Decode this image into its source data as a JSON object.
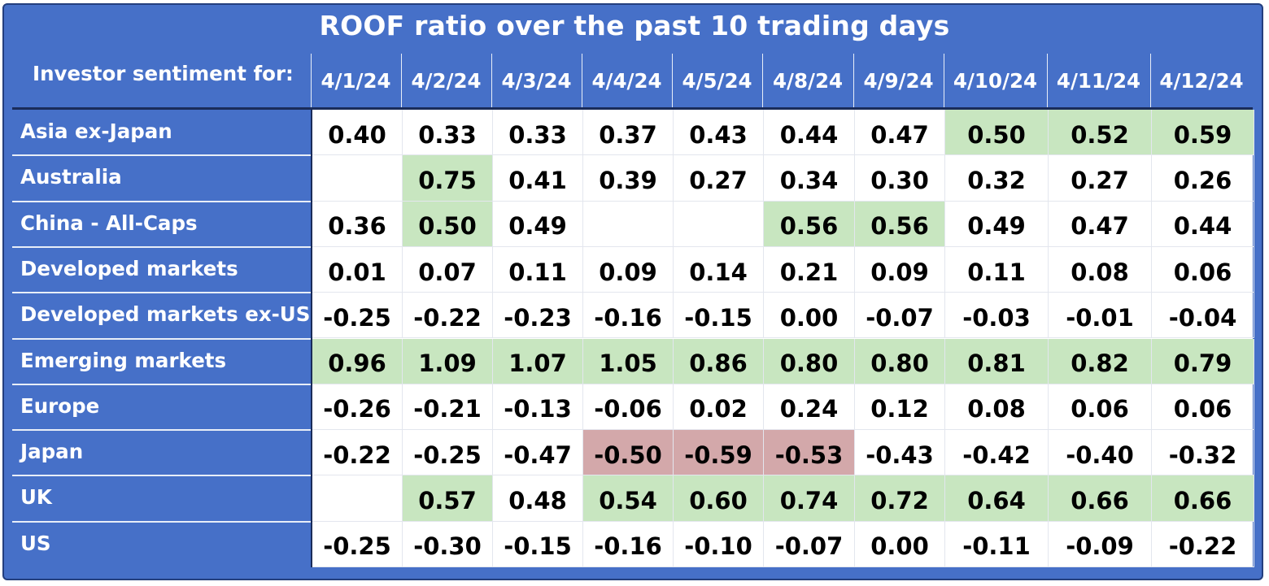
{
  "chart_data": {
    "type": "table",
    "title": "ROOF ratio over the past 10 trading days",
    "row_header": "Investor sentiment for:",
    "columns": [
      "4/1/24",
      "4/2/24",
      "4/3/24",
      "4/4/24",
      "4/5/24",
      "4/8/24",
      "4/9/24",
      "4/10/24",
      "4/11/24",
      "4/12/24"
    ],
    "rows": [
      {
        "label": "Asia ex-Japan",
        "values": [
          "0.40",
          "0.33",
          "0.33",
          "0.37",
          "0.43",
          "0.44",
          "0.47",
          "0.50",
          "0.52",
          "0.59"
        ],
        "highlight": [
          "",
          "",
          "",
          "",
          "",
          "",
          "",
          "pos",
          "pos",
          "pos"
        ]
      },
      {
        "label": "Australia",
        "values": [
          "",
          "0.75",
          "0.41",
          "0.39",
          "0.27",
          "0.34",
          "0.30",
          "0.32",
          "0.27",
          "0.26"
        ],
        "highlight": [
          "",
          "pos",
          "",
          "",
          "",
          "",
          "",
          "",
          "",
          ""
        ]
      },
      {
        "label": "China - All-Caps",
        "values": [
          "0.36",
          "0.50",
          "0.49",
          "",
          "",
          "0.56",
          "0.56",
          "0.49",
          "0.47",
          "0.44"
        ],
        "highlight": [
          "",
          "pos",
          "",
          "",
          "",
          "pos",
          "pos",
          "",
          "",
          ""
        ]
      },
      {
        "label": "Developed markets",
        "values": [
          "0.01",
          "0.07",
          "0.11",
          "0.09",
          "0.14",
          "0.21",
          "0.09",
          "0.11",
          "0.08",
          "0.06"
        ],
        "highlight": [
          "",
          "",
          "",
          "",
          "",
          "",
          "",
          "",
          "",
          ""
        ]
      },
      {
        "label": "Developed markets ex-US",
        "values": [
          "-0.25",
          "-0.22",
          "-0.23",
          "-0.16",
          "-0.15",
          "0.00",
          "-0.07",
          "-0.03",
          "-0.01",
          "-0.04"
        ],
        "highlight": [
          "",
          "",
          "",
          "",
          "",
          "",
          "",
          "",
          "",
          ""
        ]
      },
      {
        "label": "Emerging markets",
        "values": [
          "0.96",
          "1.09",
          "1.07",
          "1.05",
          "0.86",
          "0.80",
          "0.80",
          "0.81",
          "0.82",
          "0.79"
        ],
        "highlight": [
          "pos",
          "pos",
          "pos",
          "pos",
          "pos",
          "pos",
          "pos",
          "pos",
          "pos",
          "pos"
        ]
      },
      {
        "label": "Europe",
        "values": [
          "-0.26",
          "-0.21",
          "-0.13",
          "-0.06",
          "0.02",
          "0.24",
          "0.12",
          "0.08",
          "0.06",
          "0.06"
        ],
        "highlight": [
          "",
          "",
          "",
          "",
          "",
          "",
          "",
          "",
          "",
          ""
        ]
      },
      {
        "label": "Japan",
        "values": [
          "-0.22",
          "-0.25",
          "-0.47",
          "-0.50",
          "-0.59",
          "-0.53",
          "-0.43",
          "-0.42",
          "-0.40",
          "-0.32"
        ],
        "highlight": [
          "",
          "",
          "",
          "neg",
          "neg",
          "neg",
          "",
          "",
          "",
          ""
        ]
      },
      {
        "label": "UK",
        "values": [
          "",
          "0.57",
          "0.48",
          "0.54",
          "0.60",
          "0.74",
          "0.72",
          "0.64",
          "0.66",
          "0.66"
        ],
        "highlight": [
          "",
          "pos",
          "",
          "pos",
          "pos",
          "pos",
          "pos",
          "pos",
          "pos",
          "pos"
        ]
      },
      {
        "label": "US",
        "values": [
          "-0.25",
          "-0.30",
          "-0.15",
          "-0.16",
          "-0.10",
          "-0.07",
          "0.00",
          "-0.11",
          "-0.09",
          "-0.22"
        ],
        "highlight": [
          "",
          "",
          "",
          "",
          "",
          "",
          "",
          "",
          "",
          ""
        ]
      }
    ],
    "colors": {
      "header_bg": "#4670c8",
      "positive_highlight": "#c8e6c0",
      "negative_highlight": "#d3a8aa",
      "cell_bg": "#ffffff"
    }
  }
}
